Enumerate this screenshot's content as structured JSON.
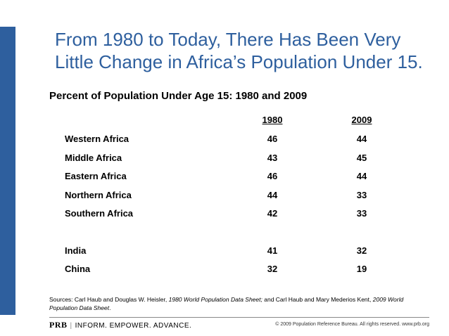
{
  "title": "From 1980 to Today, There Has Been Very Little Change in Africa’s Population Under 15.",
  "chart_data": {
    "type": "table",
    "title": "Percent of Population Under Age 15: 1980 and 2009",
    "columns": [
      "1980",
      "2009"
    ],
    "groups": [
      {
        "rows": [
          {
            "name": "Western Africa",
            "values": [
              46,
              44
            ]
          },
          {
            "name": "Middle Africa",
            "values": [
              43,
              45
            ]
          },
          {
            "name": "Eastern Africa",
            "values": [
              46,
              44
            ]
          },
          {
            "name": "Northern Africa",
            "values": [
              44,
              33
            ]
          },
          {
            "name": "Southern Africa",
            "values": [
              42,
              33
            ]
          }
        ]
      },
      {
        "rows": [
          {
            "name": "India",
            "values": [
              41,
              32
            ]
          },
          {
            "name": "China",
            "values": [
              32,
              19
            ]
          }
        ]
      }
    ]
  },
  "sources": {
    "prefix": "Sources: Carl Haub and Douglas W. Heisler, ",
    "title1": "1980 World Population Data Sheet;",
    "middle": " and Carl Haub and Mary Mederios Kent, ",
    "title2": "2009 World Population Data Sheet",
    "suffix": "."
  },
  "footer": {
    "logo": "PRB",
    "separator": "|",
    "tagline": "INFORM. EMPOWER. ADVANCE.",
    "copyright": "© 2009 Population Reference Bureau. All rights reserved. www.prb.org"
  },
  "colors": {
    "accent": "#2e5f9e"
  }
}
